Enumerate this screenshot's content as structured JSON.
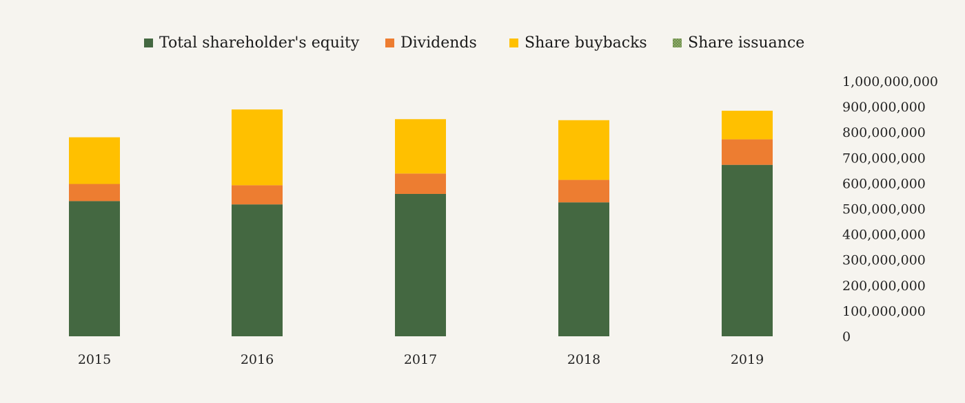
{
  "chart_data": {
    "type": "bar",
    "stacked": true,
    "categories": [
      "2015",
      "2016",
      "2017",
      "2018",
      "2019"
    ],
    "series": [
      {
        "name": "Total shareholder's equity",
        "color": "#446841",
        "values": [
          530000000,
          517000000,
          558000000,
          525000000,
          672000000
        ]
      },
      {
        "name": "Dividends",
        "color": "#ed7d31",
        "values": [
          67000000,
          75000000,
          80000000,
          88000000,
          100000000
        ]
      },
      {
        "name": "Share buybacks",
        "color": "#ffc000",
        "values": [
          183000000,
          297000000,
          213000000,
          234000000,
          112000000
        ]
      },
      {
        "name": "Share issuance",
        "color": "#8eab6a",
        "values": [
          0,
          0,
          0,
          0,
          0
        ]
      }
    ],
    "yticks": [
      "0",
      "100,000,000",
      "200,000,000",
      "300,000,000",
      "400,000,000",
      "500,000,000",
      "600,000,000",
      "700,000,000",
      "800,000,000",
      "900,000,000",
      "1,000,000,000"
    ],
    "ylim": [
      0,
      1000000000
    ],
    "yaxis_position": "right",
    "legend_position": "top",
    "grid": false
  }
}
